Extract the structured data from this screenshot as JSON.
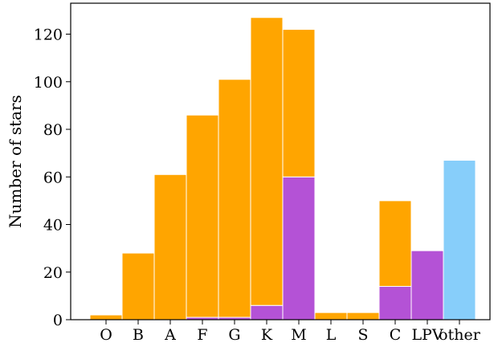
{
  "chart_data": {
    "type": "bar",
    "stacked": true,
    "categories": [
      "O",
      "B",
      "A",
      "F",
      "G",
      "K",
      "M",
      "L",
      "S",
      "C",
      "LPV",
      "other"
    ],
    "series": [
      {
        "color": "#b452d6",
        "values": [
          0,
          0,
          0,
          1,
          1,
          6,
          60,
          0,
          0,
          14,
          29,
          0
        ]
      },
      {
        "color": "#ffa500",
        "values": [
          2,
          28,
          61,
          85,
          100,
          121,
          62,
          3,
          3,
          36,
          0,
          0
        ]
      },
      {
        "color": "#87cefa",
        "values": [
          0,
          0,
          0,
          0,
          0,
          0,
          0,
          0,
          0,
          0,
          0,
          67
        ]
      }
    ],
    "ylabel": "Number of stars",
    "xlabel": "",
    "ylim": [
      0,
      133
    ],
    "yticks": [
      0,
      20,
      40,
      60,
      80,
      100,
      120
    ],
    "grid": false,
    "legend": "none"
  }
}
